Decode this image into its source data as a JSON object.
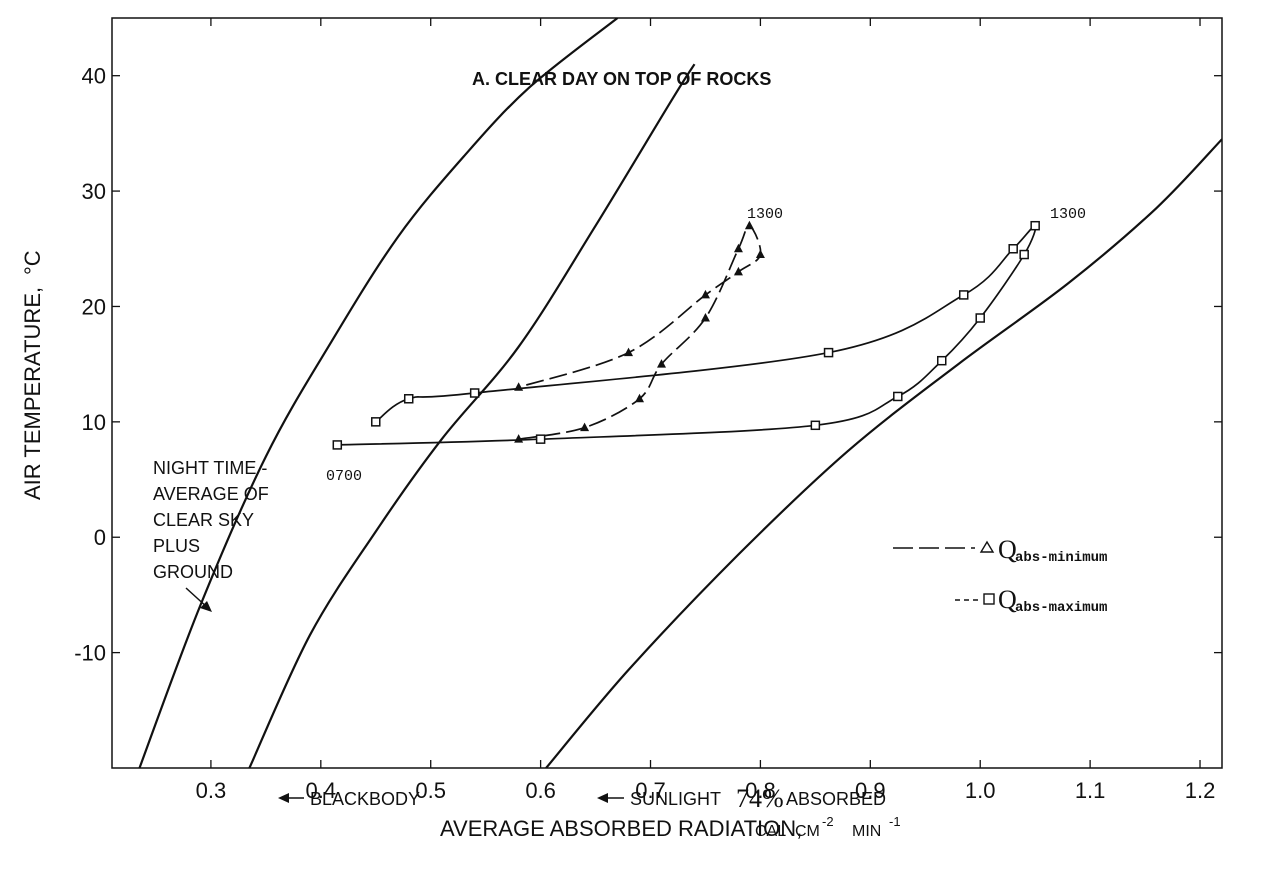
{
  "chart_data": {
    "type": "line",
    "title": "A. CLEAR DAY ON TOP OF ROCKS",
    "xlabel": "AVERAGE ABSORBED RADIATION,",
    "xlabel_unit": {
      "base": "CAL",
      "cm": "CM",
      "cm_exp": "-2",
      "min": "MIN",
      "min_exp": "-1"
    },
    "ylabel": "AIR TEMPERATURE,",
    "ylabel_unit": "°C",
    "xlim": [
      0.21,
      1.22
    ],
    "ylim": [
      -20,
      45
    ],
    "xticks": [
      0.3,
      0.4,
      0.5,
      0.6,
      0.7,
      0.8,
      0.9,
      1.0,
      1.1,
      1.2
    ],
    "xtick_labels": [
      "0.3",
      "0.4",
      "0.5",
      "0.6",
      "0.7",
      "0.8",
      "0.9",
      "1.0",
      "1.1",
      "1.2"
    ],
    "yticks": [
      40,
      30,
      20,
      10,
      0,
      -10
    ],
    "ytick_labels": [
      "40",
      "30",
      "20",
      "10",
      "0",
      "-10"
    ],
    "reference_curves": [
      {
        "name": "night-time",
        "label_lines": [
          "NIGHT TIME -",
          "AVERAGE OF",
          "CLEAR SKY",
          "PLUS",
          "GROUND"
        ],
        "x": [
          0.235,
          0.29,
          0.35,
          0.41,
          0.47,
          0.53,
          0.59,
          0.67
        ],
        "y": [
          -20,
          -6,
          7,
          17,
          26,
          33,
          39,
          45
        ]
      },
      {
        "name": "blackbody",
        "label": "BLACKBODY",
        "x": [
          0.335,
          0.39,
          0.45,
          0.51,
          0.58,
          0.65,
          0.72,
          0.74
        ],
        "y": [
          -20,
          -8.5,
          0.5,
          8.5,
          16.5,
          27,
          38,
          41
        ]
      },
      {
        "name": "sunlight-74",
        "label_prefix": "SUNLIGHT",
        "label_value": "74%",
        "label_suffix": "ABSORBED",
        "x": [
          0.605,
          0.68,
          0.78,
          0.88,
          0.98,
          1.08,
          1.16,
          1.22
        ],
        "y": [
          -20,
          -11.5,
          -1.5,
          7.5,
          15,
          22,
          28.5,
          34.5
        ]
      }
    ],
    "series": [
      {
        "name": "Qabs-minimum",
        "label": "Q",
        "label_sub": "abs-minimum",
        "marker": "triangle",
        "line": "dashed",
        "x": [
          0.58,
          0.64,
          0.69,
          0.71,
          0.75,
          0.78,
          0.79,
          0.8,
          0.78,
          0.75,
          0.68,
          0.58
        ],
        "y": [
          8.5,
          9.5,
          12,
          15,
          19,
          25,
          27,
          24.5,
          23,
          21,
          16,
          13
        ]
      },
      {
        "name": "Qabs-maximum",
        "label": "Q",
        "label_sub": "abs-maximum",
        "marker": "square",
        "line": "solid",
        "x": [
          0.415,
          0.6,
          0.85,
          0.925,
          0.965,
          1.0,
          1.04,
          1.05,
          1.03,
          0.985,
          0.862,
          0.54,
          0.48,
          0.45
        ],
        "y": [
          8,
          8.5,
          9.7,
          12.2,
          15.3,
          19,
          24.5,
          27,
          25,
          21,
          16,
          12.5,
          12,
          10
        ]
      }
    ],
    "annotations": {
      "start_time": "0700",
      "peak_time_min": "1300",
      "peak_time_max": "1300"
    }
  }
}
